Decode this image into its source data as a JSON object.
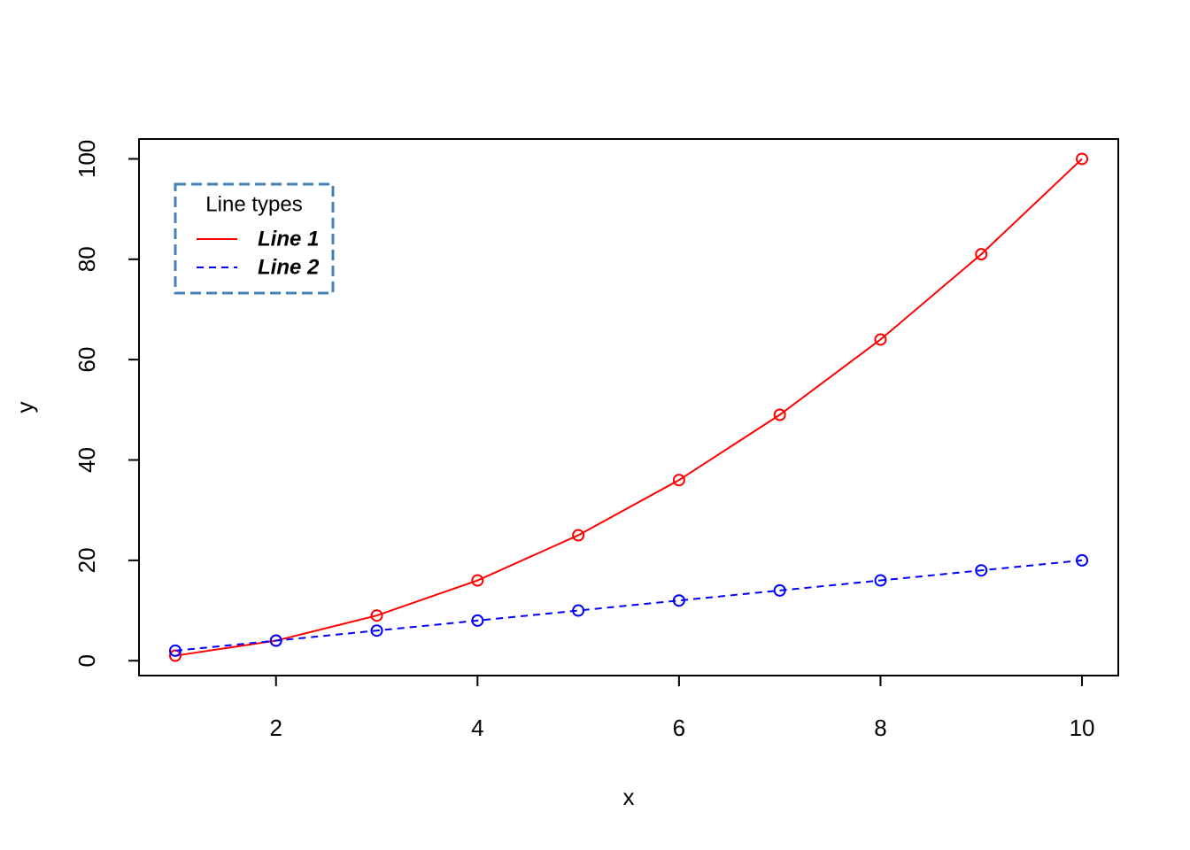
{
  "chart_data": {
    "type": "line",
    "x_label": "x",
    "y_label": "y",
    "x": [
      1,
      2,
      3,
      4,
      5,
      6,
      7,
      8,
      9,
      10
    ],
    "series": [
      {
        "name": "Line 1",
        "color": "#ff0000",
        "linestyle": "solid",
        "values": [
          1,
          4,
          9,
          16,
          25,
          36,
          49,
          64,
          81,
          100
        ]
      },
      {
        "name": "Line 2",
        "color": "#0000ff",
        "linestyle": "dashed",
        "values": [
          2,
          4,
          6,
          8,
          10,
          12,
          14,
          16,
          18,
          20
        ]
      }
    ],
    "xlim": [
      0.64,
      10.36
    ],
    "xticks": [
      2,
      4,
      6,
      8,
      10
    ],
    "ylim": [
      -2.96,
      103.96
    ],
    "yticks": [
      0,
      20,
      40,
      60,
      80,
      100
    ],
    "grid": false,
    "legend": {
      "title": "Line types",
      "position": "topleft",
      "border_color": "#4682b4"
    }
  }
}
